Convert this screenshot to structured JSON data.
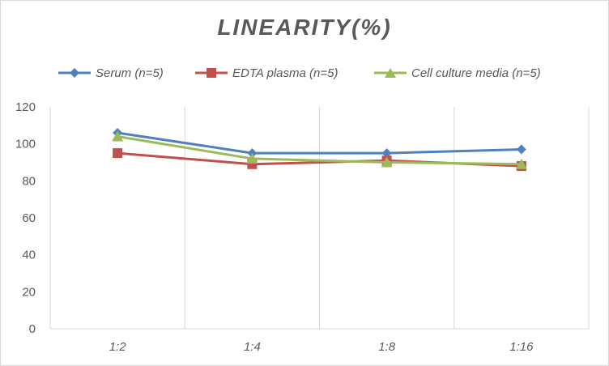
{
  "chart_data": {
    "type": "line",
    "title": "LINEARITY(%)",
    "categories": [
      "1:2",
      "1:4",
      "1:8",
      "1:16"
    ],
    "ylim": [
      0,
      120
    ],
    "yticks": [
      0,
      20,
      40,
      60,
      80,
      100,
      120
    ],
    "grid": "vertical",
    "legend_position": "top",
    "series": [
      {
        "name": "Serum (n=5)",
        "values": [
          106,
          95,
          95,
          97
        ],
        "color": "#4f81bd",
        "marker": "diamond"
      },
      {
        "name": "EDTA plasma (n=5)",
        "values": [
          95,
          89,
          91,
          88
        ],
        "color": "#c0504d",
        "marker": "square"
      },
      {
        "name": "Cell culture media (n=5)",
        "values": [
          104,
          92,
          90,
          89
        ],
        "color": "#9bbb59",
        "marker": "triangle"
      }
    ]
  }
}
